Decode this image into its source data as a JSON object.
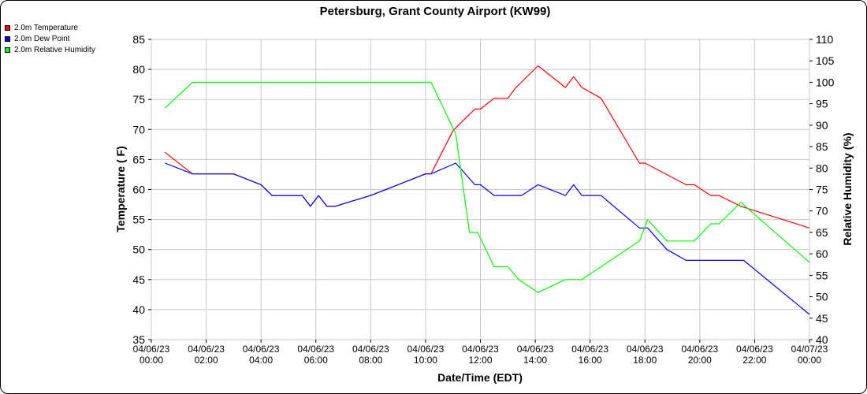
{
  "chart_data": {
    "type": "line",
    "title": "Petersburg, Grant County Airport (KW99)",
    "xlabel": "Date/Time (EDT)",
    "ylabel": "Temperature ( F)",
    "y2label": "Relative Humidity (%)",
    "xlim": [
      0,
      24
    ],
    "ylim": [
      35,
      85
    ],
    "y2lim": [
      40,
      110
    ],
    "x_ticks": [
      {
        "value": 0,
        "line1": "04/06/23",
        "line2": "00:00"
      },
      {
        "value": 2,
        "line1": "04/06/23",
        "line2": "02:00"
      },
      {
        "value": 4,
        "line1": "04/06/23",
        "line2": "04:00"
      },
      {
        "value": 6,
        "line1": "04/06/23",
        "line2": "06:00"
      },
      {
        "value": 8,
        "line1": "04/06/23",
        "line2": "08:00"
      },
      {
        "value": 10,
        "line1": "04/06/23",
        "line2": "10:00"
      },
      {
        "value": 12,
        "line1": "04/06/23",
        "line2": "12:00"
      },
      {
        "value": 14,
        "line1": "04/06/23",
        "line2": "14:00"
      },
      {
        "value": 16,
        "line1": "04/06/23",
        "line2": "16:00"
      },
      {
        "value": 18,
        "line1": "04/06/23",
        "line2": "18:00"
      },
      {
        "value": 20,
        "line1": "04/06/23",
        "line2": "20:00"
      },
      {
        "value": 22,
        "line1": "04/06/23",
        "line2": "22:00"
      },
      {
        "value": 24,
        "line1": "04/07/23",
        "line2": "00:00"
      }
    ],
    "y_ticks": [
      35,
      40,
      45,
      50,
      55,
      60,
      65,
      70,
      75,
      80,
      85
    ],
    "y2_ticks": [
      40,
      45,
      50,
      55,
      60,
      65,
      70,
      75,
      80,
      85,
      90,
      95,
      100,
      105,
      110
    ],
    "grid": true,
    "legend_position": "top-left",
    "series": [
      {
        "name": "2.0m Temperature",
        "color": "#ff0000",
        "axis": "left",
        "points": [
          [
            0.5,
            66.2
          ],
          [
            1.5,
            62.6
          ],
          [
            2.0,
            62.6
          ],
          [
            3.0,
            62.6
          ],
          [
            4.0,
            60.8
          ],
          [
            4.4,
            59.0
          ],
          [
            5.0,
            59.0
          ],
          [
            5.5,
            59.0
          ],
          [
            5.8,
            57.2
          ],
          [
            6.1,
            59.0
          ],
          [
            6.4,
            57.2
          ],
          [
            6.7,
            57.2
          ],
          [
            8.0,
            59.0
          ],
          [
            9.0,
            60.8
          ],
          [
            10.0,
            62.6
          ],
          [
            10.2,
            62.6
          ],
          [
            11.0,
            69.8
          ],
          [
            11.8,
            73.4
          ],
          [
            12.0,
            73.4
          ],
          [
            12.5,
            75.2
          ],
          [
            13.0,
            75.2
          ],
          [
            13.3,
            77.0
          ],
          [
            14.1,
            80.6
          ],
          [
            15.1,
            77.0
          ],
          [
            15.4,
            78.8
          ],
          [
            15.7,
            77.0
          ],
          [
            16.4,
            75.2
          ],
          [
            17.8,
            64.4
          ],
          [
            18.0,
            64.4
          ],
          [
            19.5,
            60.8
          ],
          [
            19.8,
            60.8
          ],
          [
            20.4,
            59.0
          ],
          [
            20.7,
            59.0
          ],
          [
            21.5,
            57.2
          ],
          [
            24.0,
            53.6
          ]
        ]
      },
      {
        "name": "2.0m Dew Point",
        "color": "#0000ff",
        "axis": "left",
        "points": [
          [
            0.5,
            64.4
          ],
          [
            1.5,
            62.6
          ],
          [
            2.0,
            62.6
          ],
          [
            3.0,
            62.6
          ],
          [
            4.0,
            60.8
          ],
          [
            4.4,
            59.0
          ],
          [
            5.0,
            59.0
          ],
          [
            5.5,
            59.0
          ],
          [
            5.8,
            57.2
          ],
          [
            6.1,
            59.0
          ],
          [
            6.4,
            57.2
          ],
          [
            6.7,
            57.2
          ],
          [
            8.0,
            59.0
          ],
          [
            9.0,
            60.8
          ],
          [
            10.0,
            62.6
          ],
          [
            10.2,
            62.6
          ],
          [
            11.1,
            64.4
          ],
          [
            11.8,
            60.8
          ],
          [
            12.0,
            60.8
          ],
          [
            12.5,
            59.0
          ],
          [
            13.0,
            59.0
          ],
          [
            13.5,
            59.0
          ],
          [
            14.1,
            60.8
          ],
          [
            15.1,
            59.0
          ],
          [
            15.4,
            60.8
          ],
          [
            15.7,
            59.0
          ],
          [
            16.4,
            59.0
          ],
          [
            17.8,
            53.6
          ],
          [
            18.1,
            53.6
          ],
          [
            18.8,
            50.0
          ],
          [
            19.5,
            48.2
          ],
          [
            20.0,
            48.2
          ],
          [
            21.0,
            48.2
          ],
          [
            21.6,
            48.2
          ],
          [
            24.0,
            39.2
          ]
        ]
      },
      {
        "name": "2.0m Relative Humidity",
        "color": "#00ff00",
        "axis": "right",
        "points": [
          [
            0.5,
            94.0
          ],
          [
            1.5,
            100.0
          ],
          [
            2.0,
            100.0
          ],
          [
            4.0,
            100.0
          ],
          [
            6.0,
            100.0
          ],
          [
            8.0,
            100.0
          ],
          [
            10.0,
            100.0
          ],
          [
            10.2,
            100.0
          ],
          [
            11.1,
            88.0
          ],
          [
            11.6,
            65.0
          ],
          [
            11.9,
            65.0
          ],
          [
            12.5,
            57.0
          ],
          [
            12.8,
            57.0
          ],
          [
            13.0,
            57.0
          ],
          [
            13.4,
            54.0
          ],
          [
            14.1,
            51.0
          ],
          [
            15.1,
            54.0
          ],
          [
            15.4,
            54.0
          ],
          [
            15.7,
            54.0
          ],
          [
            16.4,
            57.0
          ],
          [
            17.8,
            63.0
          ],
          [
            18.1,
            68.0
          ],
          [
            18.8,
            63.0
          ],
          [
            19.5,
            63.0
          ],
          [
            19.8,
            63.0
          ],
          [
            20.4,
            67.0
          ],
          [
            20.7,
            67.0
          ],
          [
            21.5,
            72.0
          ],
          [
            24.0,
            58.0
          ]
        ]
      }
    ]
  }
}
